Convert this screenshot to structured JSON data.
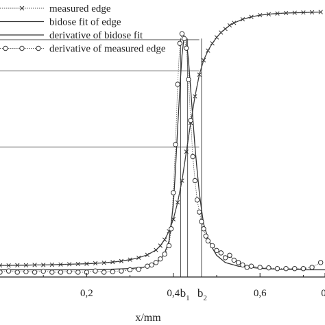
{
  "chart_data": {
    "type": "line",
    "xlabel": "x/mm",
    "ylabel": "",
    "xlim": [
      0.0,
      0.75
    ],
    "ylim": [
      0.0,
      1.15
    ],
    "xticks": [
      {
        "value": 0.2,
        "label": "0,2"
      },
      {
        "value": 0.4,
        "label": "0,4"
      },
      {
        "value": 0.6,
        "label": "0,6"
      },
      {
        "value": 0.75,
        "label": "0"
      }
    ],
    "annotations": [
      {
        "label": "b",
        "subscript": "1",
        "x": 0.425
      },
      {
        "label": "b",
        "subscript": "2",
        "x": 0.465
      }
    ],
    "reference_lines_y": [
      0.985,
      0.856,
      0.54
    ],
    "legend": {
      "position": "top-left",
      "entries": [
        {
          "label": "measured edge",
          "style": "dotted-x"
        },
        {
          "label": "bidose fit of edge",
          "style": "solid"
        },
        {
          "label": "derivative of bidose fit",
          "style": "solid"
        },
        {
          "label": "derivative of measured edge",
          "style": "dotted-o"
        }
      ]
    },
    "series": [
      {
        "name": "measured edge",
        "marker": "x",
        "x": [
          0.0,
          0.02,
          0.04,
          0.06,
          0.08,
          0.1,
          0.12,
          0.14,
          0.16,
          0.18,
          0.2,
          0.22,
          0.24,
          0.26,
          0.28,
          0.3,
          0.32,
          0.34,
          0.36,
          0.37,
          0.38,
          0.39,
          0.4,
          0.41,
          0.42,
          0.43,
          0.44,
          0.45,
          0.46,
          0.47,
          0.48,
          0.49,
          0.5,
          0.51,
          0.52,
          0.53,
          0.54,
          0.56,
          0.58,
          0.6,
          0.62,
          0.64,
          0.66,
          0.68,
          0.7,
          0.72,
          0.74
        ],
        "values": [
          0.048,
          0.048,
          0.049,
          0.049,
          0.05,
          0.05,
          0.051,
          0.052,
          0.053,
          0.054,
          0.055,
          0.057,
          0.059,
          0.062,
          0.066,
          0.072,
          0.08,
          0.092,
          0.112,
          0.13,
          0.155,
          0.19,
          0.24,
          0.31,
          0.4,
          0.52,
          0.64,
          0.75,
          0.84,
          0.9,
          0.94,
          0.97,
          0.995,
          1.015,
          1.03,
          1.045,
          1.055,
          1.07,
          1.08,
          1.087,
          1.091,
          1.094,
          1.096,
          1.097,
          1.098,
          1.099,
          1.1
        ]
      },
      {
        "name": "bidose fit of edge",
        "x": [
          0.0,
          0.02,
          0.04,
          0.06,
          0.08,
          0.1,
          0.12,
          0.14,
          0.16,
          0.18,
          0.2,
          0.22,
          0.24,
          0.26,
          0.28,
          0.3,
          0.32,
          0.34,
          0.36,
          0.37,
          0.38,
          0.39,
          0.4,
          0.41,
          0.42,
          0.43,
          0.44,
          0.45,
          0.46,
          0.47,
          0.48,
          0.49,
          0.5,
          0.51,
          0.52,
          0.53,
          0.54,
          0.56,
          0.58,
          0.6,
          0.62,
          0.64,
          0.66,
          0.68,
          0.7,
          0.72,
          0.74
        ],
        "values": [
          0.048,
          0.048,
          0.049,
          0.049,
          0.05,
          0.05,
          0.051,
          0.052,
          0.053,
          0.054,
          0.055,
          0.057,
          0.059,
          0.062,
          0.066,
          0.072,
          0.08,
          0.092,
          0.112,
          0.13,
          0.155,
          0.19,
          0.24,
          0.31,
          0.4,
          0.52,
          0.64,
          0.75,
          0.84,
          0.9,
          0.94,
          0.97,
          0.995,
          1.015,
          1.03,
          1.045,
          1.055,
          1.07,
          1.08,
          1.087,
          1.091,
          1.094,
          1.096,
          1.097,
          1.098,
          1.099,
          1.1
        ]
      },
      {
        "name": "derivative of bidose fit",
        "x": [
          0.0,
          0.05,
          0.1,
          0.15,
          0.2,
          0.25,
          0.3,
          0.33,
          0.35,
          0.37,
          0.38,
          0.39,
          0.4,
          0.405,
          0.41,
          0.415,
          0.42,
          0.425,
          0.43,
          0.435,
          0.44,
          0.445,
          0.45,
          0.455,
          0.46,
          0.465,
          0.47,
          0.48,
          0.49,
          0.5,
          0.52,
          0.55,
          0.6,
          0.65,
          0.7,
          0.75
        ],
        "values": [
          0.03,
          0.03,
          0.03,
          0.03,
          0.03,
          0.032,
          0.035,
          0.04,
          0.05,
          0.07,
          0.1,
          0.15,
          0.3,
          0.45,
          0.62,
          0.78,
          0.92,
          1.0,
          0.98,
          0.9,
          0.78,
          0.66,
          0.54,
          0.44,
          0.35,
          0.28,
          0.22,
          0.16,
          0.12,
          0.09,
          0.06,
          0.045,
          0.036,
          0.032,
          0.03,
          0.03
        ]
      },
      {
        "name": "derivative of measured edge",
        "marker": "o",
        "x": [
          0.0,
          0.02,
          0.04,
          0.06,
          0.08,
          0.1,
          0.12,
          0.14,
          0.16,
          0.18,
          0.2,
          0.22,
          0.24,
          0.26,
          0.28,
          0.3,
          0.32,
          0.34,
          0.35,
          0.36,
          0.37,
          0.38,
          0.39,
          0.395,
          0.4,
          0.405,
          0.41,
          0.415,
          0.42,
          0.425,
          0.43,
          0.435,
          0.44,
          0.445,
          0.45,
          0.455,
          0.46,
          0.465,
          0.47,
          0.475,
          0.48,
          0.49,
          0.5,
          0.51,
          0.52,
          0.53,
          0.54,
          0.55,
          0.56,
          0.57,
          0.58,
          0.6,
          0.62,
          0.64,
          0.66,
          0.68,
          0.7,
          0.72,
          0.74
        ],
        "values": [
          0.02,
          0.025,
          0.02,
          0.022,
          0.02,
          0.024,
          0.02,
          0.02,
          0.022,
          0.02,
          0.02,
          0.025,
          0.02,
          0.022,
          0.025,
          0.03,
          0.032,
          0.045,
          0.05,
          0.06,
          0.075,
          0.095,
          0.13,
          0.2,
          0.35,
          0.55,
          0.8,
          0.97,
          1.01,
          0.99,
          0.95,
          0.82,
          0.65,
          0.5,
          0.4,
          0.32,
          0.27,
          0.23,
          0.2,
          0.17,
          0.15,
          0.13,
          0.11,
          0.1,
          0.08,
          0.09,
          0.07,
          0.06,
          0.05,
          0.04,
          0.045,
          0.04,
          0.038,
          0.035,
          0.035,
          0.035,
          0.035,
          0.04,
          0.06
        ]
      }
    ]
  }
}
